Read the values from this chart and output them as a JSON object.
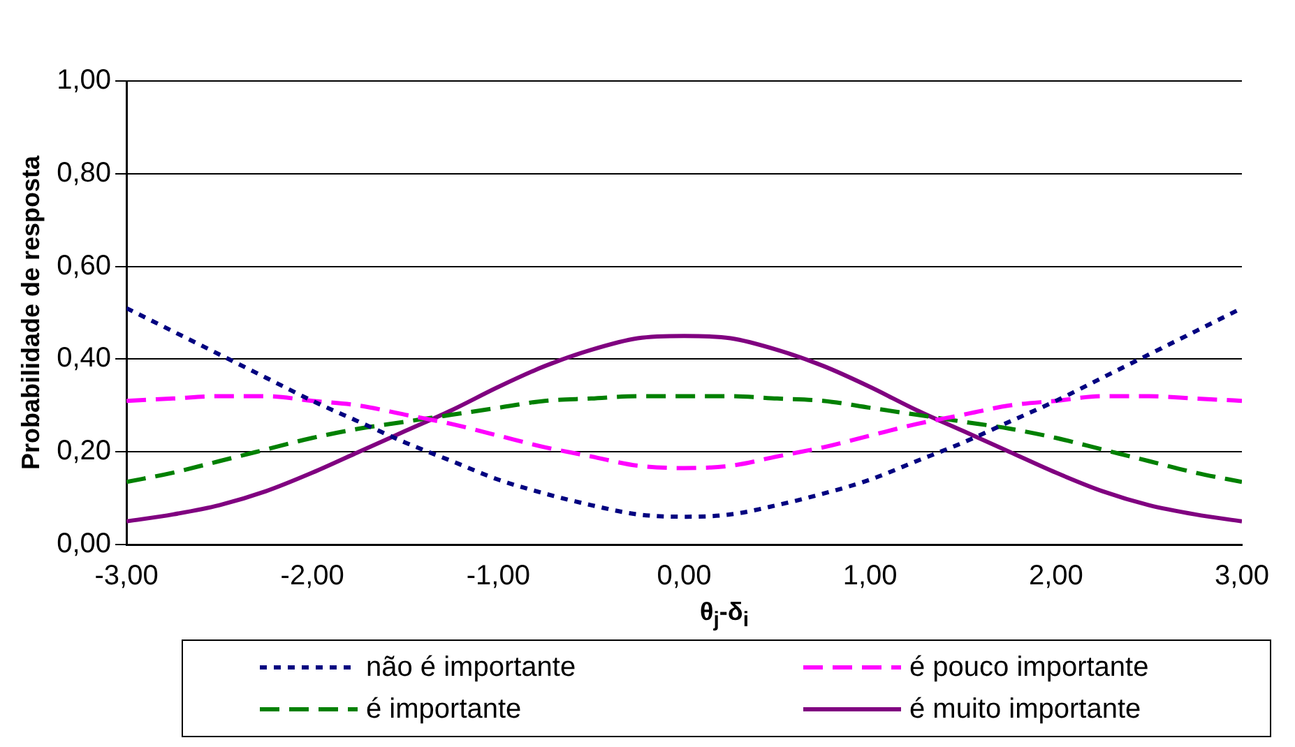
{
  "chart_data": {
    "type": "line",
    "xlabel": "θ$_{j}$-δ$_{i}$",
    "ylabel": "Probabilidade de resposta",
    "x": [
      -3,
      -2.75,
      -2.5,
      -2.25,
      -2,
      -1.75,
      -1.5,
      -1.25,
      -1,
      -0.75,
      -0.5,
      -0.25,
      0,
      0.25,
      0.5,
      0.75,
      1,
      1.25,
      1.5,
      1.75,
      2,
      2.25,
      2.5,
      2.75,
      3
    ],
    "series": [
      {
        "name": "não é importante",
        "color": "#000080",
        "line_style": "dotted",
        "values": [
          0.51,
          0.46,
          0.41,
          0.36,
          0.31,
          0.265,
          0.22,
          0.18,
          0.14,
          0.11,
          0.085,
          0.065,
          0.06,
          0.065,
          0.085,
          0.11,
          0.14,
          0.18,
          0.22,
          0.265,
          0.31,
          0.36,
          0.41,
          0.46,
          0.51
        ]
      },
      {
        "name": "é pouco importante",
        "color": "#ff00ff",
        "line_style": "dashed",
        "values": [
          0.31,
          0.315,
          0.32,
          0.32,
          0.31,
          0.3,
          0.28,
          0.26,
          0.235,
          0.21,
          0.19,
          0.17,
          0.165,
          0.17,
          0.19,
          0.21,
          0.235,
          0.26,
          0.28,
          0.3,
          0.31,
          0.32,
          0.32,
          0.315,
          0.31
        ]
      },
      {
        "name": "é importante",
        "color": "#008000",
        "line_style": "dashed",
        "values": [
          0.135,
          0.155,
          0.18,
          0.205,
          0.23,
          0.25,
          0.265,
          0.28,
          0.295,
          0.31,
          0.315,
          0.32,
          0.32,
          0.32,
          0.315,
          0.31,
          0.295,
          0.28,
          0.265,
          0.25,
          0.23,
          0.205,
          0.18,
          0.155,
          0.135
        ]
      },
      {
        "name": "é muito importante",
        "color": "#800080",
        "line_style": "solid",
        "values": [
          0.05,
          0.065,
          0.085,
          0.115,
          0.155,
          0.2,
          0.245,
          0.29,
          0.34,
          0.385,
          0.42,
          0.445,
          0.45,
          0.445,
          0.42,
          0.385,
          0.34,
          0.29,
          0.245,
          0.2,
          0.155,
          0.115,
          0.085,
          0.065,
          0.05
        ]
      }
    ],
    "xlim": [
      -3,
      3
    ],
    "xticks": [
      {
        "value": -3,
        "label": "-3,00"
      },
      {
        "value": -2,
        "label": "-2,00"
      },
      {
        "value": -1,
        "label": "-1,00"
      },
      {
        "value": 0,
        "label": "0,00"
      },
      {
        "value": 1,
        "label": "1,00"
      },
      {
        "value": 2,
        "label": "2,00"
      },
      {
        "value": 3,
        "label": "3,00"
      }
    ],
    "ylim": [
      0,
      1
    ],
    "yticks": [
      {
        "value": 0,
        "label": "0,00"
      },
      {
        "value": 0.2,
        "label": "0,20"
      },
      {
        "value": 0.4,
        "label": "0,40"
      },
      {
        "value": 0.6,
        "label": "0,60"
      },
      {
        "value": 0.8,
        "label": "0,80"
      },
      {
        "value": 1,
        "label": "1,00"
      }
    ],
    "grid": "y",
    "legend": "bottom",
    "marker": "none"
  }
}
